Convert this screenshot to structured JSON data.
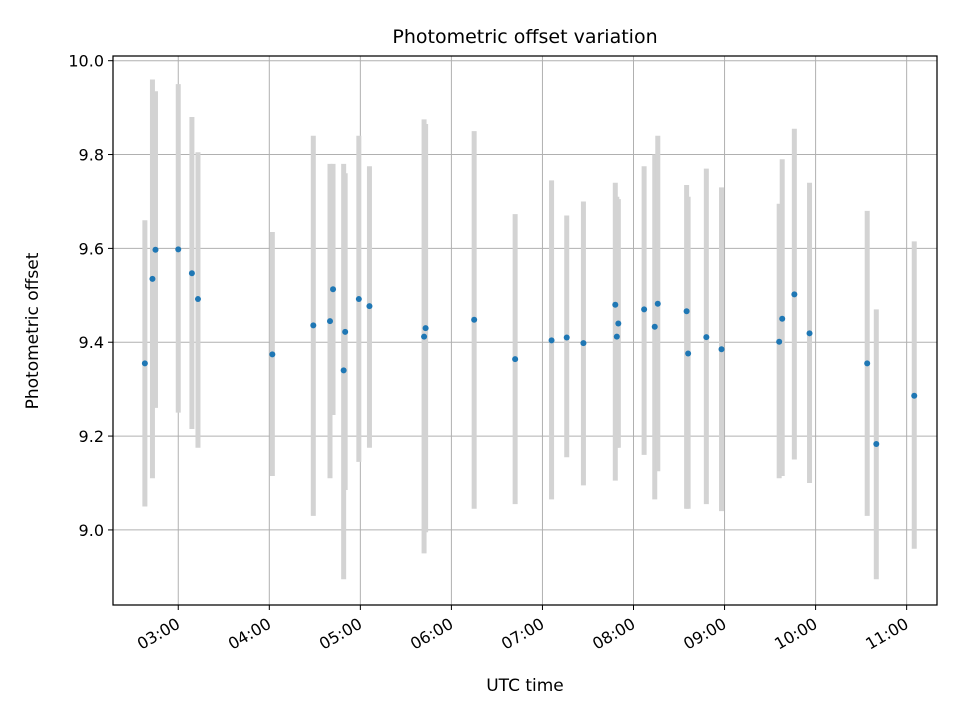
{
  "chart_data": {
    "type": "scatter",
    "title": "Photometric offset variation",
    "xlabel": "UTC time",
    "ylabel": "Photometric offset",
    "x_tick_labels": [
      "03:00",
      "04:00",
      "05:00",
      "06:00",
      "07:00",
      "08:00",
      "09:00",
      "10:00",
      "11:00"
    ],
    "y_tick_labels": [
      "9.0",
      "9.2",
      "9.4",
      "9.6",
      "9.8",
      "10.0"
    ],
    "xlim": [
      "02:17",
      "11:20"
    ],
    "ylim": [
      8.84,
      10.01
    ],
    "grid": true,
    "colors": {
      "point": "#1f77b4",
      "errorbar": "#d3d3d3",
      "grid": "#b0b0b0",
      "axes": "#000000"
    },
    "points": [
      {
        "x": "02:38",
        "y": 9.355,
        "ylow": 9.05,
        "yhigh": 9.66
      },
      {
        "x": "02:43",
        "y": 9.535,
        "ylow": 9.11,
        "yhigh": 9.96
      },
      {
        "x": "02:45",
        "y": 9.597,
        "ylow": 9.26,
        "yhigh": 9.935
      },
      {
        "x": "03:00",
        "y": 9.598,
        "ylow": 9.25,
        "yhigh": 9.95
      },
      {
        "x": "03:09",
        "y": 9.547,
        "ylow": 9.215,
        "yhigh": 9.88
      },
      {
        "x": "03:13",
        "y": 9.492,
        "ylow": 9.175,
        "yhigh": 9.805
      },
      {
        "x": "04:02",
        "y": 9.374,
        "ylow": 9.115,
        "yhigh": 9.635
      },
      {
        "x": "04:29",
        "y": 9.436,
        "ylow": 9.03,
        "yhigh": 9.84
      },
      {
        "x": "04:40",
        "y": 9.445,
        "ylow": 9.11,
        "yhigh": 9.78
      },
      {
        "x": "04:42",
        "y": 9.513,
        "ylow": 9.245,
        "yhigh": 9.78
      },
      {
        "x": "04:49",
        "y": 9.34,
        "ylow": 8.895,
        "yhigh": 9.78
      },
      {
        "x": "04:50",
        "y": 9.422,
        "ylow": 9.085,
        "yhigh": 9.76
      },
      {
        "x": "04:59",
        "y": 9.492,
        "ylow": 9.145,
        "yhigh": 9.84
      },
      {
        "x": "05:06",
        "y": 9.477,
        "ylow": 9.175,
        "yhigh": 9.775
      },
      {
        "x": "05:42",
        "y": 9.412,
        "ylow": 8.95,
        "yhigh": 9.875
      },
      {
        "x": "05:43",
        "y": 9.43,
        "ylow": 8.995,
        "yhigh": 9.865
      },
      {
        "x": "06:15",
        "y": 9.448,
        "ylow": 9.045,
        "yhigh": 9.85
      },
      {
        "x": "06:42",
        "y": 9.364,
        "ylow": 9.055,
        "yhigh": 9.673
      },
      {
        "x": "07:06",
        "y": 9.404,
        "ylow": 9.065,
        "yhigh": 9.745
      },
      {
        "x": "07:16",
        "y": 9.41,
        "ylow": 9.155,
        "yhigh": 9.67
      },
      {
        "x": "07:27",
        "y": 9.398,
        "ylow": 9.095,
        "yhigh": 9.7
      },
      {
        "x": "07:48",
        "y": 9.48,
        "ylow": 9.105,
        "yhigh": 9.74
      },
      {
        "x": "07:49",
        "y": 9.412,
        "ylow": 9.175,
        "yhigh": 9.71
      },
      {
        "x": "07:50",
        "y": 9.44,
        "ylow": 9.175,
        "yhigh": 9.705
      },
      {
        "x": "08:07",
        "y": 9.47,
        "ylow": 9.16,
        "yhigh": 9.775
      },
      {
        "x": "08:14",
        "y": 9.433,
        "ylow": 9.065,
        "yhigh": 9.8
      },
      {
        "x": "08:16",
        "y": 9.482,
        "ylow": 9.125,
        "yhigh": 9.84
      },
      {
        "x": "08:35",
        "y": 9.466,
        "ylow": 9.045,
        "yhigh": 9.735
      },
      {
        "x": "08:36",
        "y": 9.376,
        "ylow": 9.045,
        "yhigh": 9.71
      },
      {
        "x": "08:48",
        "y": 9.411,
        "ylow": 9.055,
        "yhigh": 9.77
      },
      {
        "x": "08:58",
        "y": 9.385,
        "ylow": 9.04,
        "yhigh": 9.73
      },
      {
        "x": "09:36",
        "y": 9.401,
        "ylow": 9.11,
        "yhigh": 9.695
      },
      {
        "x": "09:38",
        "y": 9.45,
        "ylow": 9.115,
        "yhigh": 9.79
      },
      {
        "x": "09:46",
        "y": 9.502,
        "ylow": 9.15,
        "yhigh": 9.855
      },
      {
        "x": "09:56",
        "y": 9.419,
        "ylow": 9.1,
        "yhigh": 9.74
      },
      {
        "x": "10:34",
        "y": 9.355,
        "ylow": 9.03,
        "yhigh": 9.68
      },
      {
        "x": "10:40",
        "y": 9.183,
        "ylow": 8.895,
        "yhigh": 9.47
      },
      {
        "x": "11:05",
        "y": 9.286,
        "ylow": 8.96,
        "yhigh": 9.615
      }
    ]
  }
}
